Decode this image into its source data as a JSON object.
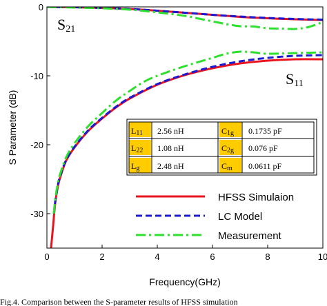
{
  "chart_data": {
    "type": "line",
    "xlabel": "Frequency(GHz)",
    "ylabel": "S Parameter (dB)",
    "xlim": [
      0,
      10
    ],
    "ylim": [
      -35,
      0
    ],
    "xticks": [
      0,
      2,
      4,
      6,
      8,
      10
    ],
    "yticks": [
      0,
      -10,
      -20,
      -30
    ],
    "annotations": [
      {
        "main": "S",
        "sub": "21"
      },
      {
        "main": "S",
        "sub": "11"
      }
    ],
    "series": [
      {
        "name": "HFSS Simulaion",
        "color": "#e8141e",
        "style": "solid",
        "curves": [
          {
            "label": "S21",
            "x": [
              0,
              1,
              2,
              3,
              4,
              5,
              6,
              7,
              8,
              9,
              10
            ],
            "y": [
              0,
              -0.05,
              -0.15,
              -0.3,
              -0.55,
              -0.85,
              -1.15,
              -1.45,
              -1.65,
              -1.8,
              -1.9
            ]
          },
          {
            "label": "S11",
            "x": [
              0.15,
              0.22,
              0.3,
              0.4,
              0.5,
              0.7,
              1,
              1.5,
              2,
              2.5,
              3,
              4,
              5,
              6,
              7,
              8,
              9,
              10
            ],
            "y": [
              -35,
              -32,
              -28.5,
              -26,
              -24.5,
              -22.3,
              -20.4,
              -18,
              -16.2,
              -14.6,
              -13.3,
              -11.3,
              -9.9,
              -8.9,
              -8.2,
              -7.8,
              -7.6,
              -7.6
            ]
          }
        ]
      },
      {
        "name": "LC Model",
        "color": "#1a1ad0",
        "style": "dashed",
        "curves": [
          {
            "label": "S21",
            "x": [
              0,
              1,
              2,
              3,
              4,
              5,
              6,
              7,
              8,
              9,
              10
            ],
            "y": [
              0,
              -0.05,
              -0.15,
              -0.3,
              -0.55,
              -0.85,
              -1.15,
              -1.4,
              -1.6,
              -1.75,
              -1.85
            ]
          },
          {
            "label": "S11",
            "x": [
              0.25,
              0.3,
              0.4,
              0.5,
              0.7,
              1,
              1.5,
              2,
              2.5,
              3,
              4,
              5,
              6,
              7,
              8,
              9,
              10
            ],
            "y": [
              -30,
              -28.3,
              -25.8,
              -24.3,
              -22.2,
              -20.3,
              -17.9,
              -16.1,
              -14.5,
              -13.2,
              -11.2,
              -9.8,
              -8.7,
              -7.9,
              -7.4,
              -7.1,
              -7.0
            ]
          }
        ]
      },
      {
        "name": "Measurement",
        "color": "#2de02d",
        "style": "dashdot",
        "curves": [
          {
            "label": "S21",
            "x": [
              0,
              1,
              2,
              3,
              4,
              5,
              5.5,
              6,
              6.5,
              7,
              7.5,
              8,
              8.5,
              9,
              9.5,
              10
            ],
            "y": [
              0,
              -0.1,
              -0.2,
              -0.4,
              -0.8,
              -1.3,
              -1.7,
              -2.1,
              -2.5,
              -2.8,
              -2.85,
              -3.1,
              -3.15,
              -3.2,
              -2.9,
              -2.2
            ]
          },
          {
            "label": "S11",
            "x": [
              0.25,
              0.3,
              0.4,
              0.5,
              0.7,
              1,
              1.5,
              2,
              2.5,
              3,
              3.5,
              4,
              5,
              6,
              6.5,
              7,
              7.5,
              8,
              9,
              10
            ],
            "y": [
              -30,
              -28,
              -25.5,
              -24,
              -21.8,
              -19.8,
              -17.3,
              -15.4,
              -13.6,
              -12.2,
              -10.9,
              -10.0,
              -8.6,
              -7.4,
              -6.8,
              -6.5,
              -6.6,
              -6.8,
              -6.7,
              -6.6
            ]
          }
        ]
      }
    ],
    "legend": {
      "placement": "bottom-right"
    },
    "table": {
      "rows": [
        [
          {
            "label": "L",
            "sub": "11",
            "value": "2.56 nH"
          },
          {
            "label": "C",
            "sub": "1g",
            "value": "0.1735 pF"
          }
        ],
        [
          {
            "label": "L",
            "sub": "22",
            "value": "1.08 nH"
          },
          {
            "label": "C",
            "sub": "2g",
            "value": "0.076 pF"
          }
        ],
        [
          {
            "label": "L",
            "sub": "g",
            "value": "2.48 nH"
          },
          {
            "label": "C",
            "sub": "m",
            "value": "0.0611 pF"
          }
        ]
      ],
      "label_bg": "#ffcc00"
    }
  },
  "caption": "Fig.4. Comparison between the S-parameter results of HFSS simulation"
}
